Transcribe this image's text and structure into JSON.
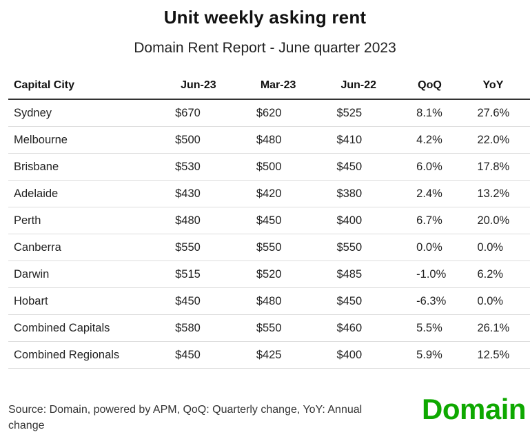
{
  "title": "Unit weekly asking rent",
  "subtitle": "Domain Rent Report - June quarter 2023",
  "chart_data": {
    "type": "table",
    "columns": [
      "Capital City",
      "Jun-23",
      "Mar-23",
      "Jun-22",
      "QoQ",
      "YoY"
    ],
    "rows": [
      [
        "Sydney",
        "$670",
        "$620",
        "$525",
        "8.1%",
        "27.6%"
      ],
      [
        "Melbourne",
        "$500",
        "$480",
        "$410",
        "4.2%",
        "22.0%"
      ],
      [
        "Brisbane",
        "$530",
        "$500",
        "$450",
        "6.0%",
        "17.8%"
      ],
      [
        "Adelaide",
        "$430",
        "$420",
        "$380",
        "2.4%",
        "13.2%"
      ],
      [
        "Perth",
        "$480",
        "$450",
        "$400",
        "6.7%",
        "20.0%"
      ],
      [
        "Canberra",
        "$550",
        "$550",
        "$550",
        "0.0%",
        "0.0%"
      ],
      [
        "Darwin",
        "$515",
        "$520",
        "$485",
        "-1.0%",
        "6.2%"
      ],
      [
        "Hobart",
        "$450",
        "$480",
        "$450",
        "-6.3%",
        "0.0%"
      ],
      [
        "Combined Capitals",
        "$580",
        "$550",
        "$460",
        "5.5%",
        "26.1%"
      ],
      [
        "Combined Regionals",
        "$450",
        "$425",
        "$400",
        "5.9%",
        "12.5%"
      ]
    ]
  },
  "source": "Source: Domain, powered by APM, QoQ: Quarterly change, YoY: Annual change",
  "logo": "Domain",
  "colors": {
    "brand": "#0ea800",
    "header_rule": "#333333",
    "row_rule": "#dddddd"
  }
}
